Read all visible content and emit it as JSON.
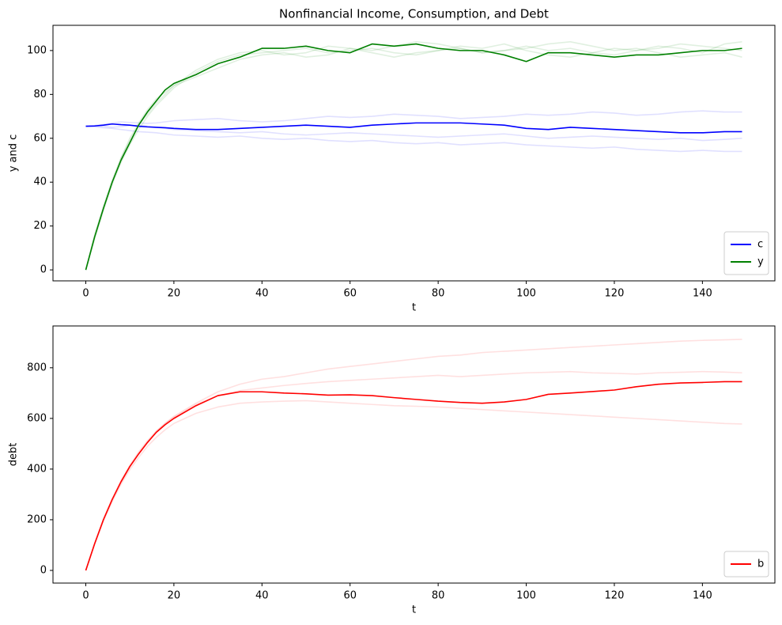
{
  "chart_data": [
    {
      "type": "line",
      "title": "Nonfinancial Income, Consumption, and Debt",
      "xlabel": "t",
      "ylabel": "y and c",
      "x": [
        0,
        2,
        4,
        6,
        8,
        10,
        12,
        14,
        16,
        18,
        20,
        25,
        30,
        35,
        40,
        45,
        50,
        55,
        60,
        65,
        70,
        75,
        80,
        85,
        90,
        95,
        100,
        105,
        110,
        115,
        120,
        125,
        130,
        135,
        140,
        145,
        149
      ],
      "xlim": [
        -7.45,
        156.45
      ],
      "xticks": [
        0,
        20,
        40,
        60,
        80,
        100,
        120,
        140
      ],
      "ylim": [
        -5,
        111.5
      ],
      "yticks": [
        0,
        20,
        40,
        60,
        80,
        100
      ],
      "legend": "lower right",
      "series": [
        {
          "color": "#0000ff",
          "alpha": 0.12,
          "values": [
            65.5,
            65.8,
            66.3,
            67,
            67.5,
            67.2,
            67,
            66.8,
            67,
            67.5,
            68,
            68.5,
            69,
            68,
            67.5,
            68,
            69,
            70,
            69.5,
            70,
            71,
            70.5,
            70,
            69,
            69.5,
            70,
            71,
            70.5,
            71,
            72,
            71.5,
            70.5,
            71,
            72,
            72.5,
            72,
            72
          ]
        },
        {
          "color": "#0000ff",
          "alpha": 0.12,
          "values": [
            65.5,
            65.2,
            64.8,
            64.5,
            64,
            63.5,
            63,
            62.8,
            62.5,
            62,
            61.5,
            61,
            60.5,
            61,
            60,
            59.5,
            60,
            59,
            58.5,
            59,
            58,
            57.5,
            58,
            57,
            57.5,
            58,
            57,
            56.5,
            56,
            55.5,
            56,
            55,
            54.5,
            54,
            54.5,
            54,
            54
          ]
        },
        {
          "color": "#0000ff",
          "alpha": 0.12,
          "values": [
            65.5,
            65.7,
            65.5,
            65,
            65.3,
            65.8,
            66,
            65.5,
            65,
            64.5,
            64,
            63.5,
            63,
            62.5,
            63,
            62,
            61.5,
            62,
            62.5,
            62,
            61.5,
            61,
            60.5,
            61,
            61.5,
            62,
            61,
            60,
            60.5,
            61,
            60.5,
            60,
            59.5,
            60,
            59,
            59.5,
            60
          ]
        },
        {
          "color": "#008000",
          "alpha": 0.12,
          "values": [
            0,
            14,
            27,
            39,
            49,
            57,
            64,
            70,
            75,
            79,
            83,
            90,
            95,
            98,
            99,
            100,
            101,
            99,
            100,
            101,
            99,
            98,
            100,
            101,
            99,
            100,
            102,
            100,
            101,
            99,
            98,
            100,
            101,
            103,
            102,
            101,
            100
          ]
        },
        {
          "color": "#008000",
          "alpha": 0.12,
          "values": [
            0,
            16,
            29,
            41,
            51,
            60,
            67,
            73,
            78,
            81,
            84,
            88,
            92,
            96,
            98,
            99,
            97,
            98,
            101,
            100,
            102,
            104,
            103,
            101,
            99,
            100,
            101,
            103,
            104,
            102,
            100,
            101,
            99,
            97,
            98,
            99,
            97
          ]
        },
        {
          "color": "#008000",
          "alpha": 0.12,
          "values": [
            0,
            15,
            28,
            40,
            51,
            59,
            66,
            71,
            76,
            80,
            84,
            91,
            96,
            99,
            100,
            98,
            99,
            102,
            101,
            99,
            97,
            99,
            100,
            102,
            101,
            103,
            100,
            98,
            97,
            99,
            101,
            100,
            102,
            101,
            99,
            103,
            104
          ]
        },
        {
          "name": "c",
          "color": "#0000ff",
          "alpha": 1,
          "values": [
            65.5,
            65.6,
            66,
            66.5,
            66.2,
            66,
            65.5,
            65.2,
            65,
            64.8,
            64.5,
            64,
            64,
            64.5,
            65,
            65.5,
            66,
            65.5,
            65,
            66,
            66.5,
            67,
            67,
            67,
            66.5,
            66,
            64.5,
            64,
            65,
            64.5,
            64,
            63.5,
            63,
            62.5,
            62.5,
            63,
            63
          ]
        },
        {
          "name": "y",
          "color": "#008000",
          "alpha": 1,
          "values": [
            0,
            15,
            28,
            40,
            50,
            58,
            66,
            72,
            77,
            82,
            85,
            89,
            94,
            97,
            101,
            101,
            102,
            100,
            99,
            103,
            102,
            103,
            101,
            100,
            100,
            98,
            95,
            99,
            99,
            98,
            97,
            98,
            98,
            99,
            100,
            100,
            101
          ]
        }
      ]
    },
    {
      "type": "line",
      "xlabel": "t",
      "ylabel": "debt",
      "x": [
        0,
        2,
        4,
        6,
        8,
        10,
        12,
        14,
        16,
        18,
        20,
        25,
        30,
        35,
        40,
        45,
        50,
        55,
        60,
        65,
        70,
        75,
        80,
        85,
        90,
        95,
        100,
        105,
        110,
        115,
        120,
        125,
        130,
        135,
        140,
        145,
        149
      ],
      "xlim": [
        -7.45,
        156.45
      ],
      "xticks": [
        0,
        20,
        40,
        60,
        80,
        100,
        120,
        140
      ],
      "ylim": [
        -50,
        965
      ],
      "yticks": [
        0,
        200,
        400,
        600,
        800
      ],
      "legend": "lower right",
      "series": [
        {
          "color": "#ff0000",
          "alpha": 0.12,
          "values": [
            0,
            104,
            198,
            278,
            348,
            408,
            458,
            505,
            548,
            580,
            608,
            660,
            705,
            735,
            755,
            765,
            780,
            795,
            805,
            815,
            825,
            835,
            845,
            850,
            860,
            865,
            870,
            875,
            880,
            885,
            890,
            895,
            900,
            905,
            908,
            910,
            912
          ]
        },
        {
          "color": "#ff0000",
          "alpha": 0.12,
          "values": [
            0,
            102,
            195,
            272,
            340,
            398,
            446,
            490,
            525,
            555,
            580,
            620,
            645,
            660,
            665,
            668,
            670,
            665,
            660,
            655,
            650,
            648,
            645,
            640,
            635,
            630,
            625,
            620,
            615,
            610,
            605,
            600,
            595,
            590,
            585,
            580,
            578
          ]
        },
        {
          "color": "#ff0000",
          "alpha": 0.12,
          "values": [
            0,
            106,
            202,
            284,
            355,
            415,
            468,
            512,
            550,
            580,
            605,
            655,
            690,
            710,
            720,
            730,
            738,
            745,
            750,
            755,
            760,
            765,
            770,
            765,
            770,
            775,
            780,
            782,
            785,
            780,
            778,
            775,
            780,
            782,
            785,
            783,
            780
          ]
        },
        {
          "name": "b",
          "color": "#ff0000",
          "alpha": 1,
          "values": [
            0,
            105,
            200,
            280,
            350,
            410,
            460,
            505,
            545,
            575,
            600,
            650,
            690,
            705,
            705,
            700,
            697,
            692,
            693,
            690,
            682,
            675,
            668,
            663,
            660,
            665,
            675,
            695,
            700,
            706,
            712,
            725,
            735,
            740,
            742,
            745,
            745
          ]
        }
      ]
    }
  ]
}
